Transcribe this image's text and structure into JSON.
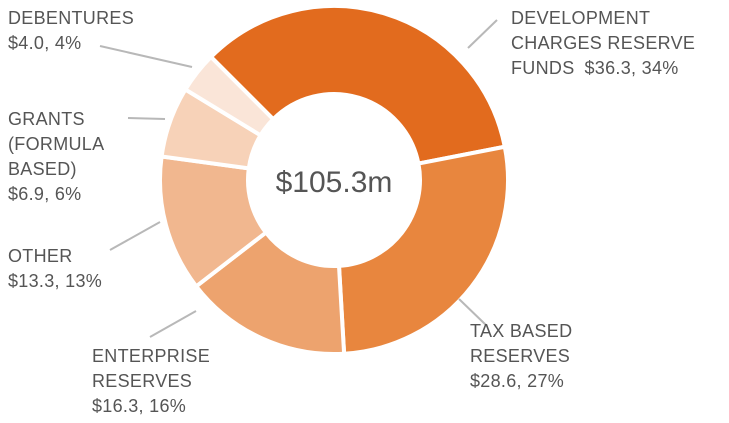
{
  "chart_data": {
    "type": "pie",
    "categories": [
      "DEVELOPMENT CHARGES RESERVE FUNDS",
      "TAX BASED RESERVES",
      "ENTERPRISE RESERVES",
      "OTHER",
      "GRANTS (FORMULA BASED)",
      "DEBENTURES"
    ],
    "values": [
      36.3,
      28.6,
      16.3,
      13.3,
      6.9,
      4.0
    ],
    "value_labels": [
      "$36.3, 34%",
      "$28.6, 27%",
      "$16.3, 16%",
      "$13.3, 13%",
      "$6.9, 6%",
      "$4.0, 4%"
    ],
    "colors": [
      "#e26b1e",
      "#e8863e",
      "#eda36e",
      "#f1b78f",
      "#f7d2b8",
      "#fae5d8"
    ],
    "center_label": "$105.3m"
  }
}
